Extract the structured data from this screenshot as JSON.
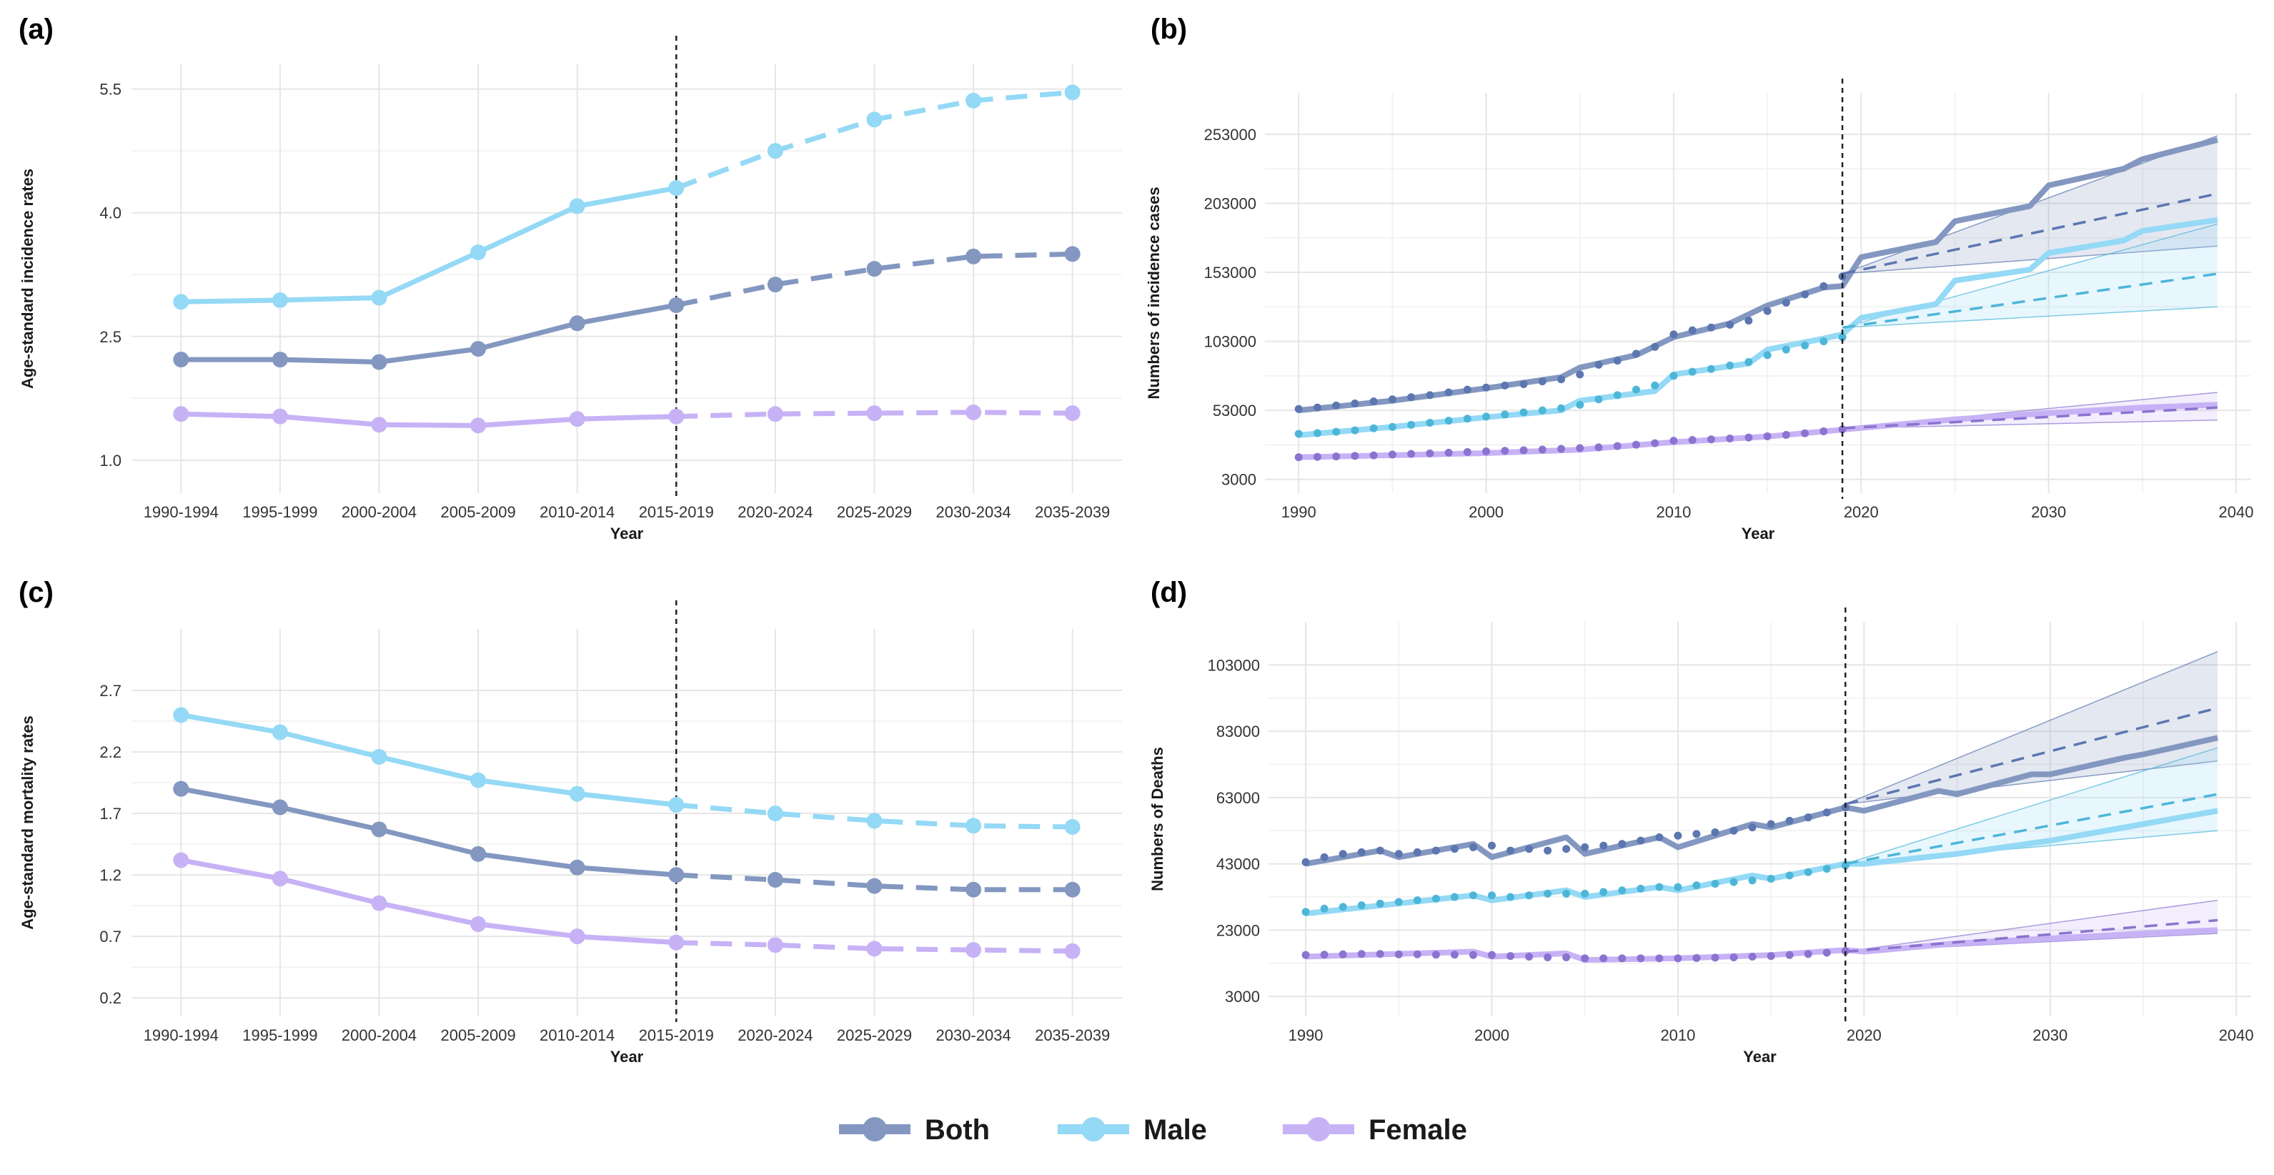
{
  "colors": {
    "both": "#8397C0",
    "male": "#94D9F5",
    "female": "#C7B2F6",
    "both_dark": "#5C76B0",
    "male_dark": "#4DB6D8",
    "female_dark": "#8B73CF"
  },
  "legend": [
    {
      "key": "both",
      "label": "Both"
    },
    {
      "key": "male",
      "label": "Male"
    },
    {
      "key": "female",
      "label": "Female"
    }
  ],
  "chart_data": [
    {
      "panel": "(a)",
      "type": "line",
      "xlabel": "Year",
      "ylabel": "Age-standard incidence rates",
      "categories": [
        "1990-1994",
        "1995-1999",
        "2000-2004",
        "2005-2009",
        "2010-2014",
        "2015-2019",
        "2020-2024",
        "2025-2029",
        "2030-2034",
        "2035-2039"
      ],
      "ylim": [
        0.6,
        5.8
      ],
      "yticks": [
        1.0,
        2.5,
        4.0,
        5.5
      ],
      "ytick_labels": [
        "1.0",
        "2.5",
        "4.0",
        "5.5"
      ],
      "divider_after_index": 5,
      "series": [
        {
          "name": "Both",
          "key": "both",
          "values": [
            2.22,
            2.22,
            2.19,
            2.35,
            2.66,
            2.88,
            3.13,
            3.32,
            3.47,
            3.5
          ]
        },
        {
          "name": "Male",
          "key": "male",
          "values": [
            2.92,
            2.94,
            2.97,
            3.52,
            4.08,
            4.3,
            4.75,
            5.13,
            5.36,
            5.46
          ]
        },
        {
          "name": "Female",
          "key": "female",
          "values": [
            1.56,
            1.53,
            1.43,
            1.42,
            1.5,
            1.53,
            1.56,
            1.57,
            1.58,
            1.57
          ]
        }
      ]
    },
    {
      "panel": "(b)",
      "type": "line",
      "xlabel": "Year",
      "ylabel": "Numbers of incidence cases",
      "xlim": [
        1988.2,
        2040.8
      ],
      "xticks": [
        1990,
        2000,
        2010,
        2020,
        2030,
        2040
      ],
      "ylim": [
        -7000,
        283000
      ],
      "yticks": [
        3000,
        53000,
        103000,
        153000,
        203000,
        253000
      ],
      "ytick_labels": [
        "3000",
        "53000",
        "103000",
        "153000",
        "203000",
        "253000"
      ],
      "divider_x": 2019,
      "observed": [
        {
          "key": "both",
          "x": [
            1990,
            1995,
            2000,
            2004,
            2005,
            2008,
            2010,
            2013,
            2015,
            2018,
            2019,
            2020,
            2024,
            2025,
            2029,
            2030,
            2034,
            2035,
            2039
          ],
          "y": [
            53000,
            60000,
            69000,
            77000,
            84000,
            93000,
            106000,
            116000,
            129000,
            142000,
            143000,
            164000,
            175000,
            190000,
            201000,
            216000,
            228000,
            235000,
            249000
          ]
        },
        {
          "key": "male",
          "x": [
            1990,
            1995,
            2000,
            2004,
            2005,
            2009,
            2010,
            2014,
            2015,
            2018,
            2019,
            2020,
            2024,
            2025,
            2029,
            2030,
            2034,
            2035,
            2039
          ],
          "y": [
            35000,
            41000,
            48000,
            53000,
            60000,
            67000,
            79000,
            87000,
            97000,
            105000,
            108000,
            120000,
            130000,
            147000,
            155000,
            167000,
            176000,
            183000,
            191000
          ]
        },
        {
          "key": "female",
          "x": [
            1990,
            2000,
            2005,
            2010,
            2015,
            2019,
            2025,
            2030,
            2035,
            2039
          ],
          "y": [
            19000,
            22000,
            24500,
            30000,
            34000,
            39000,
            46500,
            51000,
            55000,
            57000
          ]
        }
      ],
      "points": [
        {
          "key": "both",
          "x_start": 1990,
          "x_end": 2019,
          "y": [
            54000,
            55000,
            56500,
            58000,
            59500,
            61000,
            62500,
            64000,
            66000,
            68000,
            69500,
            71000,
            72000,
            74000,
            75500,
            79000,
            86000,
            89000,
            94000,
            99000,
            108000,
            111000,
            113000,
            115000,
            118000,
            125000,
            131000,
            137000,
            143000,
            150000
          ]
        },
        {
          "key": "male",
          "x_start": 1990,
          "x_end": 2019,
          "y": [
            36000,
            36500,
            37500,
            38500,
            40000,
            41000,
            42500,
            44000,
            45500,
            47000,
            48500,
            50000,
            51500,
            53000,
            54500,
            57000,
            61000,
            64000,
            68000,
            71000,
            78000,
            81000,
            83000,
            85500,
            88000,
            93000,
            97000,
            100000,
            103000,
            106000
          ]
        },
        {
          "key": "female",
          "x_start": 1990,
          "x_end": 2019,
          "y": [
            19000,
            19300,
            19600,
            20000,
            20400,
            21000,
            21400,
            21800,
            22300,
            22800,
            23300,
            23700,
            24100,
            24600,
            25100,
            25600,
            26200,
            27100,
            28100,
            29200,
            31000,
            31500,
            32000,
            32600,
            33300,
            34200,
            35200,
            36400,
            37800,
            39200
          ]
        }
      ],
      "forecast": [
        {
          "key": "both",
          "x": [
            2019,
            2039
          ],
          "y": [
            152000,
            210000
          ],
          "lower": [
            152000,
            172000
          ],
          "upper": [
            152000,
            252000
          ]
        },
        {
          "key": "male",
          "x": [
            2019,
            2039
          ],
          "y": [
            113000,
            152000
          ],
          "lower": [
            113000,
            128000
          ],
          "upper": [
            113000,
            188000
          ]
        },
        {
          "key": "female",
          "x": [
            2019,
            2039
          ],
          "y": [
            40000,
            55000
          ],
          "lower": [
            40000,
            46000
          ],
          "upper": [
            40000,
            66000
          ]
        }
      ]
    },
    {
      "panel": "(c)",
      "type": "line",
      "xlabel": "Year",
      "ylabel": "Age-standard mortality rates",
      "categories": [
        "1990-1994",
        "1995-1999",
        "2000-2004",
        "2005-2009",
        "2010-2014",
        "2015-2019",
        "2020-2024",
        "2025-2029",
        "2030-2034",
        "2035-2039"
      ],
      "ylim": [
        0.05,
        3.2
      ],
      "yticks": [
        0.2,
        0.7,
        1.2,
        1.7,
        2.2,
        2.7
      ],
      "ytick_labels": [
        "0.2",
        "0.7",
        "1.2",
        "1.7",
        "2.2",
        "2.7"
      ],
      "divider_after_index": 5,
      "series": [
        {
          "name": "Both",
          "key": "both",
          "values": [
            1.9,
            1.75,
            1.57,
            1.37,
            1.26,
            1.2,
            1.16,
            1.11,
            1.08,
            1.08
          ]
        },
        {
          "name": "Male",
          "key": "male",
          "values": [
            2.5,
            2.36,
            2.16,
            1.97,
            1.86,
            1.77,
            1.7,
            1.64,
            1.6,
            1.59
          ]
        },
        {
          "name": "Female",
          "key": "female",
          "values": [
            1.32,
            1.17,
            0.97,
            0.8,
            0.7,
            0.65,
            0.63,
            0.6,
            0.59,
            0.58
          ]
        }
      ]
    },
    {
      "panel": "(d)",
      "type": "line",
      "xlabel": "Year",
      "ylabel": "Numbers of Deaths",
      "xlim": [
        1988.0,
        2040.8
      ],
      "xticks": [
        1990,
        2000,
        2010,
        2020,
        2030,
        2040
      ],
      "ylim": [
        -3000,
        116000
      ],
      "yticks": [
        3000,
        23000,
        43000,
        63000,
        83000,
        103000
      ],
      "ytick_labels": [
        "3000",
        "23000",
        "43000",
        "63000",
        "83000",
        "103000"
      ],
      "divider_x": 2019,
      "observed": [
        {
          "key": "both",
          "x": [
            1990,
            1994,
            1995,
            1999,
            2000,
            2004,
            2005,
            2009,
            2010,
            2014,
            2015,
            2019,
            2020,
            2024,
            2025,
            2029,
            2030,
            2034,
            2035,
            2039
          ],
          "y": [
            43000,
            47000,
            45000,
            49000,
            45000,
            51000,
            46000,
            51000,
            48000,
            55000,
            54000,
            60000,
            59000,
            65000,
            64000,
            70000,
            70000,
            75000,
            76000,
            81000
          ]
        },
        {
          "key": "male",
          "x": [
            1990,
            1999,
            2000,
            2004,
            2005,
            2009,
            2010,
            2014,
            2015,
            2019,
            2020,
            2025,
            2030,
            2035,
            2039
          ],
          "y": [
            28000,
            33500,
            32000,
            35000,
            33000,
            36000,
            35000,
            39500,
            38500,
            43000,
            43000,
            46000,
            50000,
            55000,
            59000
          ]
        },
        {
          "key": "female",
          "x": [
            1990,
            1999,
            2000,
            2004,
            2005,
            2010,
            2015,
            2019,
            2020,
            2025,
            2030,
            2035,
            2039
          ],
          "y": [
            15000,
            16500,
            15000,
            16000,
            14000,
            14500,
            15500,
            17000,
            16500,
            19000,
            20500,
            22000,
            23000
          ]
        }
      ],
      "points": [
        {
          "key": "both",
          "x_start": 1990,
          "x_end": 2019,
          "y": [
            43500,
            45000,
            46000,
            46500,
            47000,
            46000,
            46500,
            47000,
            47500,
            48000,
            48500,
            47000,
            47500,
            47000,
            47500,
            48000,
            48500,
            49000,
            50000,
            51000,
            51500,
            52000,
            52500,
            53000,
            54000,
            55000,
            56000,
            57000,
            58500,
            60000
          ]
        },
        {
          "key": "male",
          "x_start": 1990,
          "x_end": 2019,
          "y": [
            28500,
            29500,
            30000,
            30500,
            31000,
            31500,
            32000,
            32500,
            33000,
            33500,
            33500,
            33000,
            33500,
            34000,
            34000,
            34000,
            34500,
            35000,
            35500,
            36000,
            36000,
            36500,
            37000,
            37500,
            38000,
            38500,
            39500,
            40500,
            41500,
            42500
          ]
        },
        {
          "key": "female",
          "x_start": 1990,
          "x_end": 2019,
          "y": [
            15500,
            15600,
            15700,
            15800,
            15800,
            15700,
            15700,
            15600,
            15600,
            15500,
            15500,
            15200,
            15000,
            14800,
            14800,
            14500,
            14500,
            14500,
            14500,
            14500,
            14500,
            14600,
            14700,
            14800,
            15000,
            15200,
            15500,
            15800,
            16200,
            16700
          ]
        }
      ],
      "forecast": [
        {
          "key": "both",
          "x": [
            2019,
            2039
          ],
          "y": [
            61000,
            90000
          ],
          "lower": [
            61000,
            74000
          ],
          "upper": [
            61000,
            107000
          ]
        },
        {
          "key": "male",
          "x": [
            2019,
            2039
          ],
          "y": [
            43000,
            64000
          ],
          "lower": [
            43000,
            53000
          ],
          "upper": [
            43000,
            78000
          ]
        },
        {
          "key": "female",
          "x": [
            2019,
            2039
          ],
          "y": [
            16500,
            26000
          ],
          "lower": [
            16500,
            22000
          ],
          "upper": [
            16500,
            32000
          ]
        }
      ]
    }
  ]
}
